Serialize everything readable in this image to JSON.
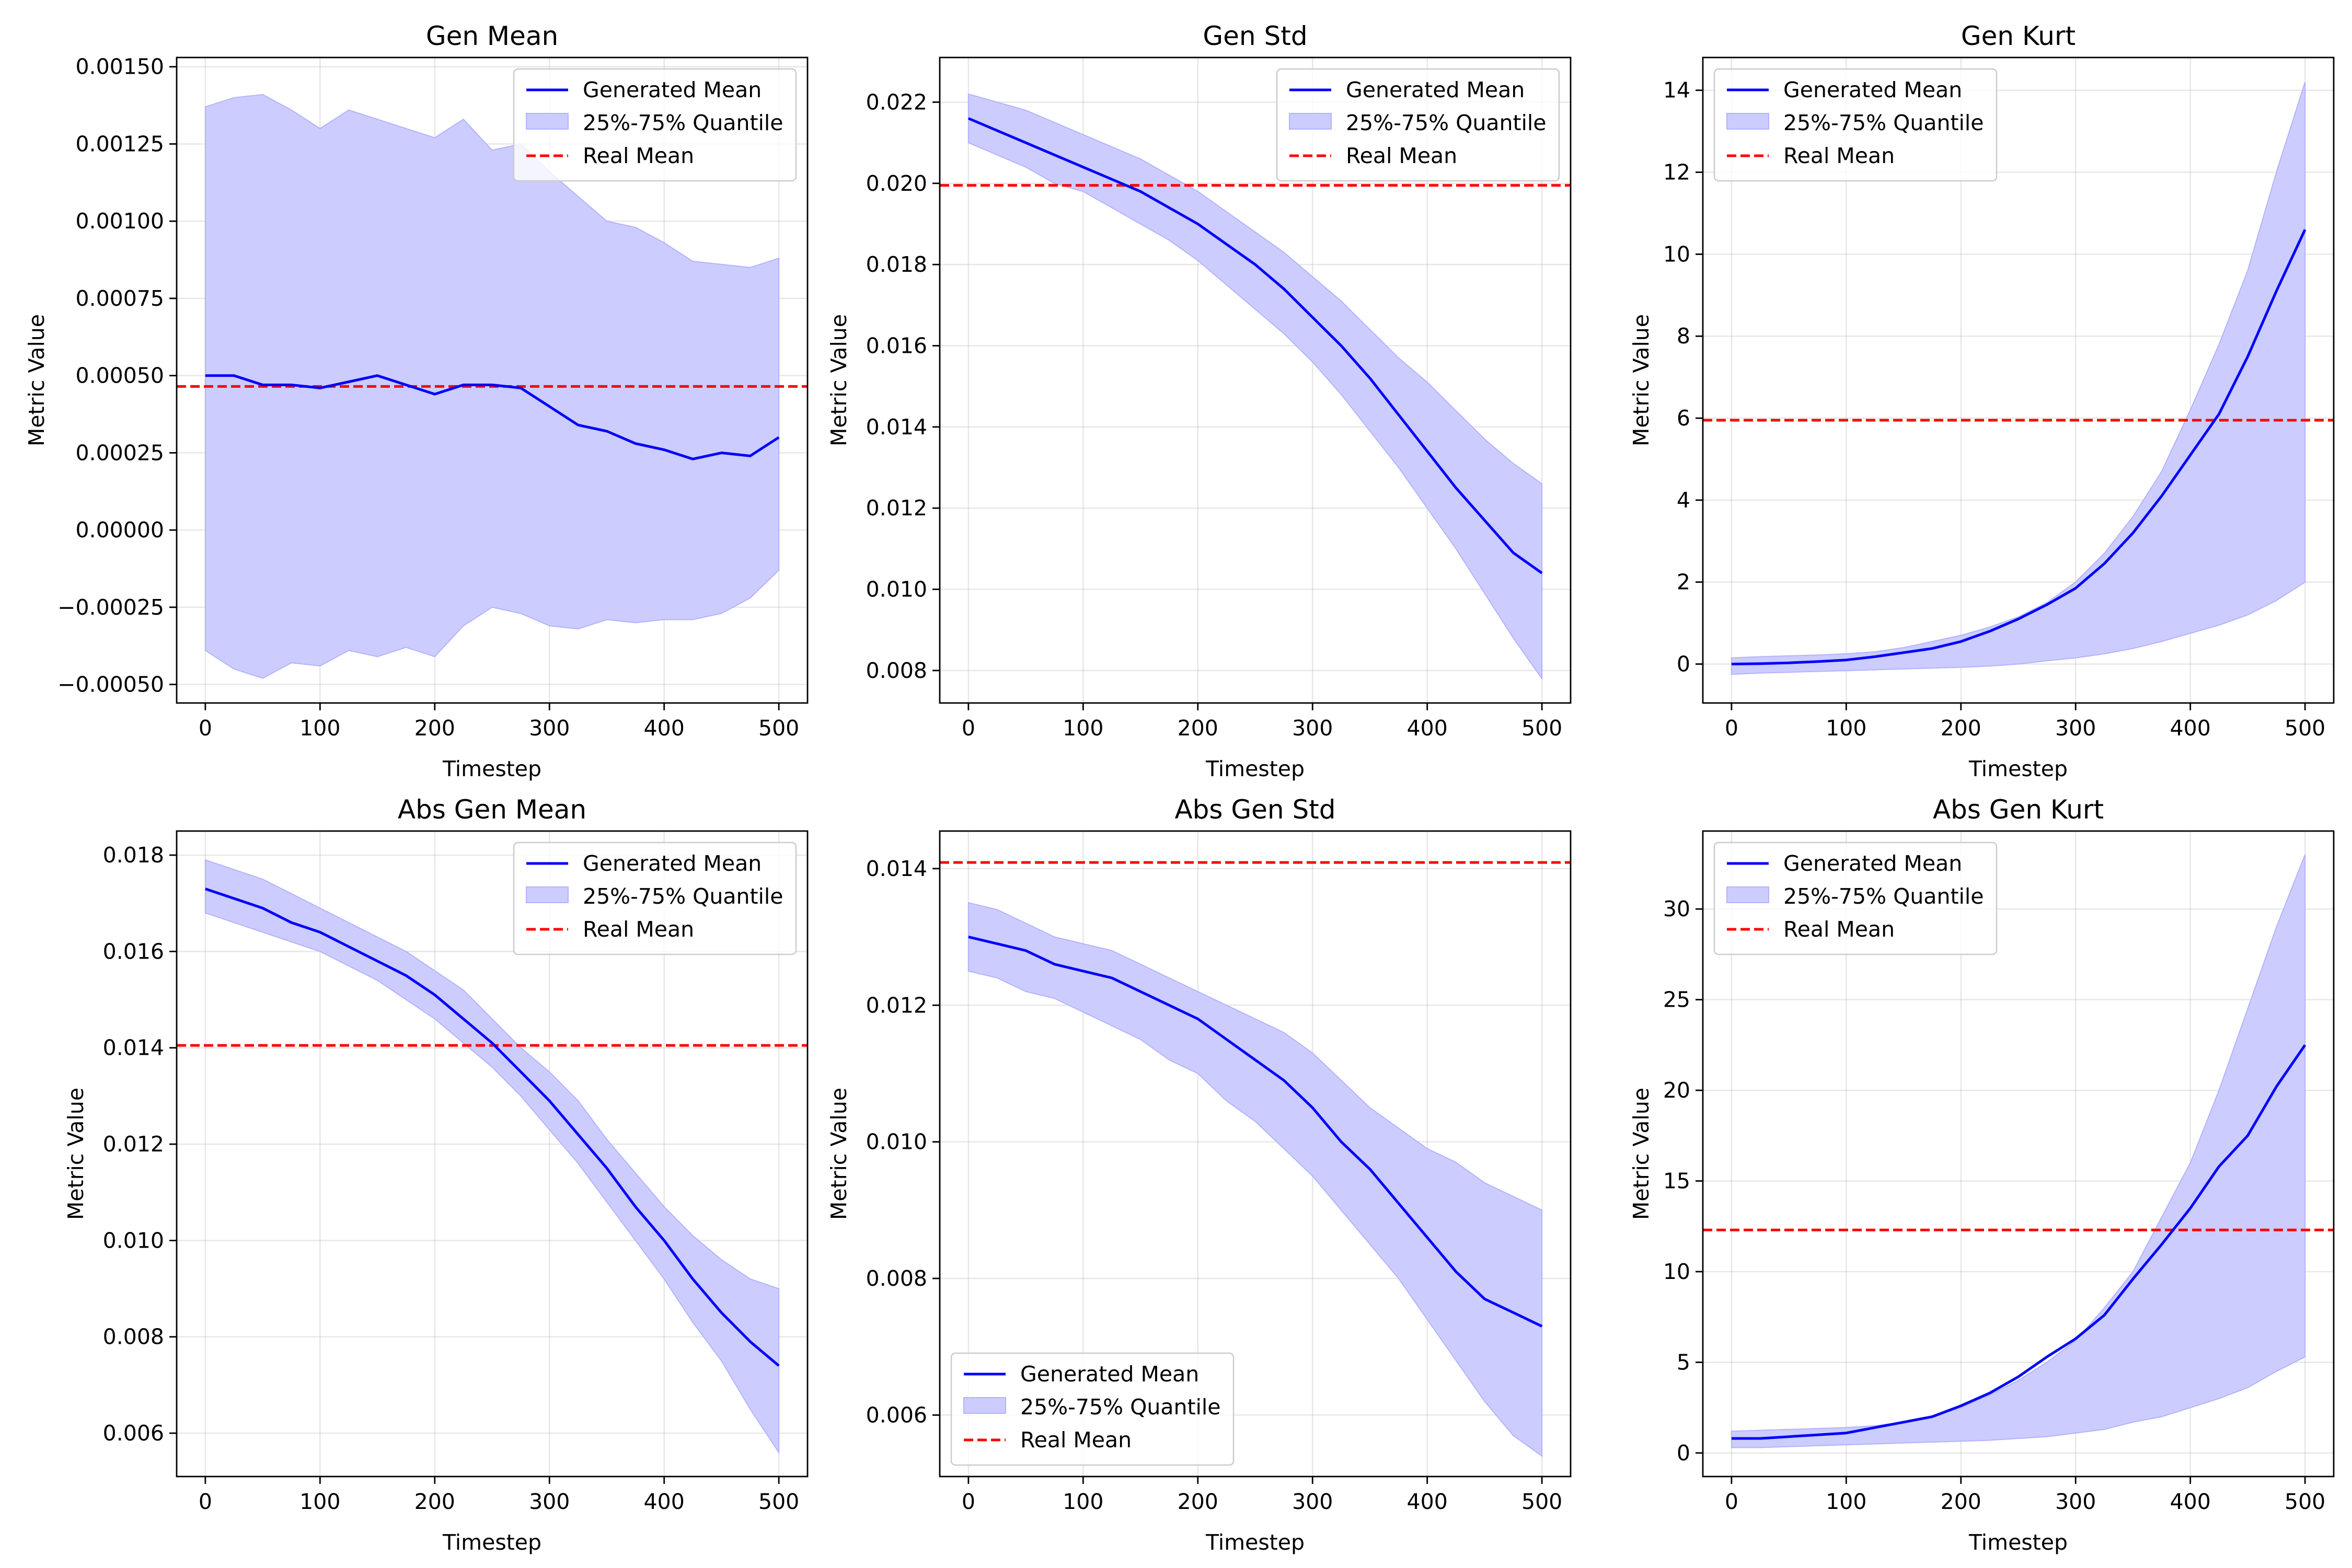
{
  "figure": {
    "background": "#ffffff"
  },
  "colors": {
    "generated_mean": "#0000ff",
    "quantile_fill": "#ccccff",
    "quantile_edge": "#b3b3ff",
    "real_mean": "#ff0000"
  },
  "chart_data": [
    {
      "type": "line",
      "title": "Gen Mean",
      "xlabel": "Timestep",
      "ylabel": "Metric Value",
      "xlim": [
        -25,
        525
      ],
      "ylim": [
        -0.00056,
        0.00153
      ],
      "xticks": [
        0,
        100,
        200,
        300,
        400,
        500
      ],
      "xtick_labels": [
        "0",
        "100",
        "200",
        "300",
        "400",
        "500"
      ],
      "yticks": [
        -0.0005,
        -0.00025,
        0,
        0.00025,
        0.0005,
        0.00075,
        0.001,
        0.00125,
        0.0015
      ],
      "ytick_labels": [
        "−0.00050",
        "−0.00025",
        "0.00000",
        "0.00025",
        "0.00050",
        "0.00075",
        "0.00100",
        "0.00125",
        "0.00150"
      ],
      "grid": true,
      "legend_position": "upper right",
      "legend": [
        "Generated Mean",
        "25%-75% Quantile",
        "Real Mean"
      ],
      "x": [
        0,
        25,
        50,
        75,
        100,
        125,
        150,
        175,
        200,
        225,
        250,
        275,
        300,
        325,
        350,
        375,
        400,
        425,
        450,
        475,
        500
      ],
      "series": [
        {
          "name": "Generated Mean",
          "values": [
            0.0005,
            0.0005,
            0.00047,
            0.00047,
            0.00046,
            0.00048,
            0.0005,
            0.00047,
            0.00044,
            0.00047,
            0.00047,
            0.00046,
            0.0004,
            0.00034,
            0.00032,
            0.00028,
            0.00026,
            0.00023,
            0.00025,
            0.00024,
            0.0003
          ]
        },
        {
          "name": "25%-75% Quantile lower",
          "values": [
            -0.00039,
            -0.00045,
            -0.00048,
            -0.00043,
            -0.00044,
            -0.00039,
            -0.00041,
            -0.00038,
            -0.00041,
            -0.00031,
            -0.00025,
            -0.00027,
            -0.00031,
            -0.00032,
            -0.00029,
            -0.0003,
            -0.00029,
            -0.00029,
            -0.00027,
            -0.00022,
            -0.00013
          ]
        },
        {
          "name": "25%-75% Quantile upper",
          "values": [
            0.00137,
            0.0014,
            0.00141,
            0.00136,
            0.0013,
            0.00136,
            0.00133,
            0.0013,
            0.00127,
            0.00133,
            0.00123,
            0.00125,
            0.00116,
            0.00108,
            0.001,
            0.00098,
            0.00093,
            0.00087,
            0.00086,
            0.00085,
            0.00088
          ]
        }
      ],
      "real_mean": 0.000465
    },
    {
      "type": "line",
      "title": "Gen Std",
      "xlabel": "Timestep",
      "ylabel": "Metric Value",
      "xlim": [
        -25,
        525
      ],
      "ylim": [
        0.0072,
        0.0231
      ],
      "xticks": [
        0,
        100,
        200,
        300,
        400,
        500
      ],
      "xtick_labels": [
        "0",
        "100",
        "200",
        "300",
        "400",
        "500"
      ],
      "yticks": [
        0.008,
        0.01,
        0.012,
        0.014,
        0.016,
        0.018,
        0.02,
        0.022
      ],
      "ytick_labels": [
        "0.008",
        "0.010",
        "0.012",
        "0.014",
        "0.016",
        "0.018",
        "0.020",
        "0.022"
      ],
      "grid": true,
      "legend_position": "upper right",
      "legend": [
        "Generated Mean",
        "25%-75% Quantile",
        "Real Mean"
      ],
      "x": [
        0,
        25,
        50,
        75,
        100,
        125,
        150,
        175,
        200,
        225,
        250,
        275,
        300,
        325,
        350,
        375,
        400,
        425,
        450,
        475,
        500
      ],
      "series": [
        {
          "name": "Generated Mean",
          "values": [
            0.0216,
            0.0213,
            0.021,
            0.0207,
            0.0204,
            0.0201,
            0.0198,
            0.0194,
            0.019,
            0.0185,
            0.018,
            0.0174,
            0.0167,
            0.016,
            0.0152,
            0.0143,
            0.0134,
            0.0125,
            0.0117,
            0.0109,
            0.0104
          ]
        },
        {
          "name": "25%-75% Quantile lower",
          "values": [
            0.021,
            0.0207,
            0.0204,
            0.02,
            0.0198,
            0.0194,
            0.019,
            0.0186,
            0.0181,
            0.0175,
            0.0169,
            0.0163,
            0.0156,
            0.0148,
            0.0139,
            0.013,
            0.012,
            0.011,
            0.0099,
            0.0088,
            0.0078
          ]
        },
        {
          "name": "25%-75% Quantile upper",
          "values": [
            0.0222,
            0.022,
            0.0218,
            0.0215,
            0.0212,
            0.0209,
            0.0206,
            0.0202,
            0.0198,
            0.0193,
            0.0188,
            0.0183,
            0.0177,
            0.0171,
            0.0164,
            0.0157,
            0.0151,
            0.0144,
            0.0137,
            0.0131,
            0.0126
          ]
        }
      ],
      "real_mean": 0.01995
    },
    {
      "type": "line",
      "title": "Gen Kurt",
      "xlabel": "Timestep",
      "ylabel": "Metric Value",
      "xlim": [
        -25,
        525
      ],
      "ylim": [
        -0.95,
        14.8
      ],
      "xticks": [
        0,
        100,
        200,
        300,
        400,
        500
      ],
      "xtick_labels": [
        "0",
        "100",
        "200",
        "300",
        "400",
        "500"
      ],
      "yticks": [
        0,
        2,
        4,
        6,
        8,
        10,
        12,
        14
      ],
      "ytick_labels": [
        "0",
        "2",
        "4",
        "6",
        "8",
        "10",
        "12",
        "14"
      ],
      "grid": true,
      "legend_position": "upper left",
      "legend": [
        "Generated Mean",
        "25%-75% Quantile",
        "Real Mean"
      ],
      "x": [
        0,
        25,
        50,
        75,
        100,
        125,
        150,
        175,
        200,
        225,
        250,
        275,
        300,
        325,
        350,
        375,
        400,
        425,
        450,
        475,
        500
      ],
      "series": [
        {
          "name": "Generated Mean",
          "values": [
            0.0,
            0.01,
            0.03,
            0.06,
            0.1,
            0.18,
            0.28,
            0.38,
            0.55,
            0.8,
            1.1,
            1.45,
            1.85,
            2.45,
            3.2,
            4.1,
            5.1,
            6.1,
            7.5,
            9.1,
            10.6
          ]
        },
        {
          "name": "25%-75% Quantile lower",
          "values": [
            -0.25,
            -0.22,
            -0.2,
            -0.18,
            -0.16,
            -0.14,
            -0.12,
            -0.1,
            -0.08,
            -0.05,
            0.0,
            0.08,
            0.15,
            0.25,
            0.38,
            0.55,
            0.75,
            0.95,
            1.2,
            1.55,
            2.0
          ]
        },
        {
          "name": "25%-75% Quantile upper",
          "values": [
            0.15,
            0.18,
            0.2,
            0.22,
            0.25,
            0.3,
            0.4,
            0.55,
            0.7,
            0.9,
            1.15,
            1.5,
            2.0,
            2.7,
            3.6,
            4.7,
            6.2,
            7.8,
            9.6,
            12.0,
            14.2
          ]
        }
      ],
      "real_mean": 5.95
    },
    {
      "type": "line",
      "title": "Abs Gen Mean",
      "xlabel": "Timestep",
      "ylabel": "Metric Value",
      "xlim": [
        -25,
        525
      ],
      "ylim": [
        0.0051,
        0.0185
      ],
      "xticks": [
        0,
        100,
        200,
        300,
        400,
        500
      ],
      "xtick_labels": [
        "0",
        "100",
        "200",
        "300",
        "400",
        "500"
      ],
      "yticks": [
        0.006,
        0.008,
        0.01,
        0.012,
        0.014,
        0.016,
        0.018
      ],
      "ytick_labels": [
        "0.006",
        "0.008",
        "0.010",
        "0.012",
        "0.014",
        "0.016",
        "0.018"
      ],
      "grid": true,
      "legend_position": "upper right",
      "legend": [
        "Generated Mean",
        "25%-75% Quantile",
        "Real Mean"
      ],
      "x": [
        0,
        25,
        50,
        75,
        100,
        125,
        150,
        175,
        200,
        225,
        250,
        275,
        300,
        325,
        350,
        375,
        400,
        425,
        450,
        475,
        500
      ],
      "series": [
        {
          "name": "Generated Mean",
          "values": [
            0.0173,
            0.0171,
            0.0169,
            0.0166,
            0.0164,
            0.0161,
            0.0158,
            0.0155,
            0.0151,
            0.0146,
            0.0141,
            0.0135,
            0.0129,
            0.0122,
            0.0115,
            0.0107,
            0.01,
            0.0092,
            0.0085,
            0.0079,
            0.0074
          ]
        },
        {
          "name": "25%-75% Quantile lower",
          "values": [
            0.0168,
            0.0166,
            0.0164,
            0.0162,
            0.016,
            0.0157,
            0.0154,
            0.015,
            0.0146,
            0.0141,
            0.0136,
            0.013,
            0.0123,
            0.0116,
            0.0108,
            0.01,
            0.0092,
            0.0083,
            0.0075,
            0.0065,
            0.0056
          ]
        },
        {
          "name": "25%-75% Quantile upper",
          "values": [
            0.0179,
            0.0177,
            0.0175,
            0.0172,
            0.0169,
            0.0166,
            0.0163,
            0.016,
            0.0156,
            0.0152,
            0.0146,
            0.014,
            0.0135,
            0.0129,
            0.0121,
            0.0114,
            0.0107,
            0.0101,
            0.0096,
            0.0092,
            0.009
          ]
        }
      ],
      "real_mean": 0.01405
    },
    {
      "type": "line",
      "title": "Abs Gen Std",
      "xlabel": "Timestep",
      "ylabel": "Metric Value",
      "xlim": [
        -25,
        525
      ],
      "ylim": [
        0.0051,
        0.01455
      ],
      "xticks": [
        0,
        100,
        200,
        300,
        400,
        500
      ],
      "xtick_labels": [
        "0",
        "100",
        "200",
        "300",
        "400",
        "500"
      ],
      "yticks": [
        0.006,
        0.008,
        0.01,
        0.012,
        0.014
      ],
      "ytick_labels": [
        "0.006",
        "0.008",
        "0.010",
        "0.012",
        "0.014"
      ],
      "grid": true,
      "legend_position": "lower left",
      "legend": [
        "Generated Mean",
        "25%-75% Quantile",
        "Real Mean"
      ],
      "x": [
        0,
        25,
        50,
        75,
        100,
        125,
        150,
        175,
        200,
        225,
        250,
        275,
        300,
        325,
        350,
        375,
        400,
        425,
        450,
        475,
        500
      ],
      "series": [
        {
          "name": "Generated Mean",
          "values": [
            0.013,
            0.0129,
            0.0128,
            0.0126,
            0.0125,
            0.0124,
            0.0122,
            0.012,
            0.0118,
            0.0115,
            0.0112,
            0.0109,
            0.0105,
            0.01,
            0.0096,
            0.0091,
            0.0086,
            0.0081,
            0.0077,
            0.0075,
            0.0073
          ]
        },
        {
          "name": "25%-75% Quantile lower",
          "values": [
            0.0125,
            0.0124,
            0.0122,
            0.0121,
            0.0119,
            0.0117,
            0.0115,
            0.0112,
            0.011,
            0.0106,
            0.0103,
            0.0099,
            0.0095,
            0.009,
            0.0085,
            0.008,
            0.0074,
            0.0068,
            0.0062,
            0.0057,
            0.0054
          ]
        },
        {
          "name": "25%-75% Quantile upper",
          "values": [
            0.0135,
            0.0134,
            0.0132,
            0.013,
            0.0129,
            0.0128,
            0.0126,
            0.0124,
            0.0122,
            0.012,
            0.0118,
            0.0116,
            0.0113,
            0.0109,
            0.0105,
            0.0102,
            0.0099,
            0.0097,
            0.0094,
            0.0092,
            0.009
          ]
        }
      ],
      "real_mean": 0.01409
    },
    {
      "type": "line",
      "title": "Abs Gen Kurt",
      "xlabel": "Timestep",
      "ylabel": "Metric Value",
      "xlim": [
        -25,
        525
      ],
      "ylim": [
        -1.3,
        34.3
      ],
      "xticks": [
        0,
        100,
        200,
        300,
        400,
        500
      ],
      "xtick_labels": [
        "0",
        "100",
        "200",
        "300",
        "400",
        "500"
      ],
      "yticks": [
        0,
        5,
        10,
        15,
        20,
        25,
        30
      ],
      "ytick_labels": [
        "0",
        "5",
        "10",
        "15",
        "20",
        "25",
        "30"
      ],
      "grid": true,
      "legend_position": "upper left",
      "legend": [
        "Generated Mean",
        "25%-75% Quantile",
        "Real Mean"
      ],
      "x": [
        0,
        25,
        50,
        75,
        100,
        125,
        150,
        175,
        200,
        225,
        250,
        275,
        300,
        325,
        350,
        375,
        400,
        425,
        450,
        475,
        500
      ],
      "series": [
        {
          "name": "Generated Mean",
          "values": [
            0.8,
            0.8,
            0.9,
            1.0,
            1.1,
            1.4,
            1.7,
            2.0,
            2.6,
            3.3,
            4.2,
            5.3,
            6.3,
            7.6,
            9.6,
            11.5,
            13.5,
            15.8,
            17.5,
            20.2,
            22.5
          ]
        },
        {
          "name": "25%-75% Quantile lower",
          "values": [
            0.3,
            0.3,
            0.35,
            0.4,
            0.45,
            0.5,
            0.55,
            0.6,
            0.65,
            0.7,
            0.8,
            0.9,
            1.1,
            1.3,
            1.7,
            2.0,
            2.5,
            3.0,
            3.6,
            4.5,
            5.3
          ]
        },
        {
          "name": "25%-75% Quantile upper",
          "values": [
            1.2,
            1.25,
            1.3,
            1.35,
            1.4,
            1.5,
            1.7,
            2.0,
            2.5,
            3.2,
            4.0,
            5.0,
            6.2,
            8.0,
            10.0,
            13.0,
            16.0,
            20.0,
            24.5,
            29.0,
            33.0
          ]
        }
      ],
      "real_mean": 12.3
    }
  ]
}
